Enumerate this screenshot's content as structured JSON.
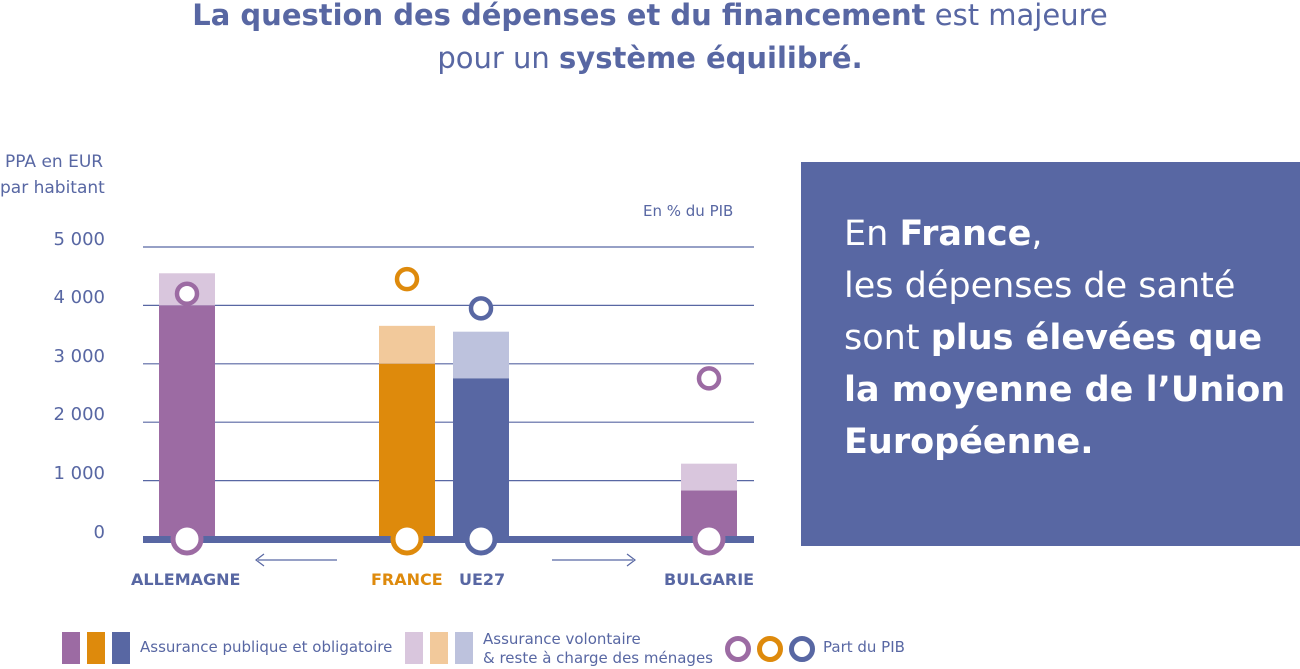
{
  "title": {
    "part1_bold": "La question des dépenses et du financement",
    "part1_light": " est majeure",
    "part2_light": "pour un ",
    "part2_bold": "système équilibré."
  },
  "y_axis": {
    "label_line1": "PPA en EUR",
    "label_line2": "par habitant",
    "ticks": [
      "5 000",
      "4 000",
      "3 000",
      "2 000",
      "1 000",
      "0"
    ]
  },
  "pib_axis_label": "En % du PIB",
  "panel": {
    "line1_light": "En ",
    "line1_bold": "France",
    "line1_end": ",",
    "line2": "les dépenses de santé",
    "line3_light": "sont ",
    "line3_bold": "plus élevées que",
    "line4_bold": "la moyenne de l’Union",
    "line5_bold": "Européenne."
  },
  "legend": {
    "public": "Assurance publique et obligatoire",
    "voluntary_line1": "Assurance volontaire",
    "voluntary_line2": "& reste à charge des ménages",
    "pib": "Part du PIB"
  },
  "colors": {
    "allemagne": "#9c6ba3",
    "allemagne_light": "#d9c6dd",
    "france": "#de8a0c",
    "france_light": "#f2c99b",
    "ue27": "#5867a3",
    "ue27_light": "#bdc2dd",
    "bulgarie": "#9c6ba3",
    "bulgarie_light": "#d9c6dd",
    "text": "#5867a3",
    "grid": "#5867a3"
  },
  "chart_data": {
    "type": "bar",
    "stacked": true,
    "categories": [
      "ALLEMAGNE",
      "FRANCE",
      "UE27",
      "BULGARIE"
    ],
    "series": [
      {
        "name": "Assurance publique et obligatoire",
        "values": [
          4000,
          3000,
          2750,
          830
        ]
      },
      {
        "name": "Assurance volontaire & reste à charge des ménages",
        "values": [
          550,
          650,
          800,
          460
        ]
      }
    ],
    "pib_rings": [
      4200,
      4450,
      3950,
      2750
    ],
    "ylabel": "PPA en EUR par habitant",
    "secondary_label": "En % du PIB",
    "ylim": [
      0,
      5000
    ],
    "grid": true
  }
}
